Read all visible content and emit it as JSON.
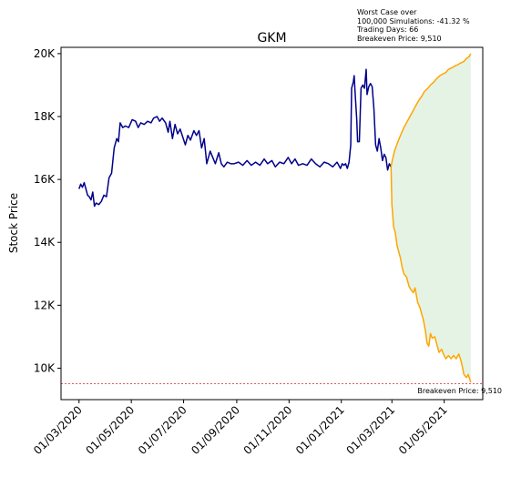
{
  "chart_data": {
    "type": "line",
    "title": "GKM",
    "ylabel": "Stock Price",
    "xlabel": "",
    "annotation_lines": [
      "Worst Case over",
      "100,000 Simulations: -41.32 %",
      "Trading Days: 66",
      "Breakeven Price: 9,510"
    ],
    "breakeven": {
      "value": 9510,
      "label": "Breakeven Price: 9,510",
      "color": "#d62728"
    },
    "x_tick_labels": [
      "01/03/2020",
      "01/05/2020",
      "01/07/2020",
      "01/09/2020",
      "01/11/2020",
      "01/01/2021",
      "01/03/2021",
      "01/05/2021"
    ],
    "x_tick_dates": [
      "2020-03-01",
      "2020-05-01",
      "2020-07-01",
      "2020-09-01",
      "2020-11-01",
      "2021-01-01",
      "2021-03-01",
      "2021-05-01"
    ],
    "xlim": [
      "2020-02-09",
      "2021-06-15"
    ],
    "y_ticks": [
      10000,
      12000,
      14000,
      16000,
      18000,
      20000
    ],
    "y_tick_labels": [
      "10K",
      "12K",
      "14K",
      "16K",
      "18K",
      "20K"
    ],
    "ylim": [
      9000,
      20200
    ],
    "grid": false,
    "series": [
      {
        "color": "#00008b",
        "points": [
          [
            "2020-03-01",
            15700
          ],
          [
            "2020-03-03",
            15850
          ],
          [
            "2020-03-05",
            15750
          ],
          [
            "2020-03-07",
            15900
          ],
          [
            "2020-03-09",
            15700
          ],
          [
            "2020-03-11",
            15500
          ],
          [
            "2020-03-13",
            15450
          ],
          [
            "2020-03-15",
            15350
          ],
          [
            "2020-03-17",
            15600
          ],
          [
            "2020-03-19",
            15150
          ],
          [
            "2020-03-21",
            15250
          ],
          [
            "2020-03-24",
            15200
          ],
          [
            "2020-03-27",
            15300
          ],
          [
            "2020-03-30",
            15500
          ],
          [
            "2020-04-02",
            15450
          ],
          [
            "2020-04-05",
            16050
          ],
          [
            "2020-04-08",
            16200
          ],
          [
            "2020-04-11",
            17000
          ],
          [
            "2020-04-14",
            17300
          ],
          [
            "2020-04-16",
            17200
          ],
          [
            "2020-04-18",
            17800
          ],
          [
            "2020-04-21",
            17650
          ],
          [
            "2020-04-24",
            17700
          ],
          [
            "2020-04-28",
            17650
          ],
          [
            "2020-05-02",
            17900
          ],
          [
            "2020-05-06",
            17850
          ],
          [
            "2020-05-09",
            17650
          ],
          [
            "2020-05-12",
            17800
          ],
          [
            "2020-05-16",
            17750
          ],
          [
            "2020-05-20",
            17850
          ],
          [
            "2020-05-24",
            17800
          ],
          [
            "2020-05-27",
            17950
          ],
          [
            "2020-05-31",
            18000
          ],
          [
            "2020-06-03",
            17850
          ],
          [
            "2020-06-06",
            17950
          ],
          [
            "2020-06-10",
            17800
          ],
          [
            "2020-06-13",
            17500
          ],
          [
            "2020-06-15",
            17850
          ],
          [
            "2020-06-18",
            17300
          ],
          [
            "2020-06-21",
            17750
          ],
          [
            "2020-06-24",
            17450
          ],
          [
            "2020-06-27",
            17600
          ],
          [
            "2020-06-30",
            17350
          ],
          [
            "2020-07-03",
            17100
          ],
          [
            "2020-07-06",
            17400
          ],
          [
            "2020-07-09",
            17250
          ],
          [
            "2020-07-13",
            17550
          ],
          [
            "2020-07-16",
            17400
          ],
          [
            "2020-07-19",
            17550
          ],
          [
            "2020-07-22",
            17000
          ],
          [
            "2020-07-25",
            17300
          ],
          [
            "2020-07-28",
            16500
          ],
          [
            "2020-08-01",
            16900
          ],
          [
            "2020-08-04",
            16700
          ],
          [
            "2020-08-07",
            16500
          ],
          [
            "2020-08-11",
            16850
          ],
          [
            "2020-08-14",
            16500
          ],
          [
            "2020-08-17",
            16400
          ],
          [
            "2020-08-21",
            16550
          ],
          [
            "2020-08-25",
            16500
          ],
          [
            "2020-08-29",
            16500
          ],
          [
            "2020-09-03",
            16550
          ],
          [
            "2020-09-08",
            16450
          ],
          [
            "2020-09-13",
            16600
          ],
          [
            "2020-09-18",
            16450
          ],
          [
            "2020-09-23",
            16550
          ],
          [
            "2020-09-28",
            16450
          ],
          [
            "2020-10-03",
            16650
          ],
          [
            "2020-10-07",
            16500
          ],
          [
            "2020-10-12",
            16600
          ],
          [
            "2020-10-16",
            16400
          ],
          [
            "2020-10-21",
            16550
          ],
          [
            "2020-10-26",
            16500
          ],
          [
            "2020-10-31",
            16700
          ],
          [
            "2020-11-04",
            16500
          ],
          [
            "2020-11-08",
            16650
          ],
          [
            "2020-11-12",
            16450
          ],
          [
            "2020-11-17",
            16500
          ],
          [
            "2020-11-22",
            16450
          ],
          [
            "2020-11-27",
            16650
          ],
          [
            "2020-12-02",
            16500
          ],
          [
            "2020-12-07",
            16400
          ],
          [
            "2020-12-12",
            16550
          ],
          [
            "2020-12-17",
            16500
          ],
          [
            "2020-12-22",
            16400
          ],
          [
            "2020-12-27",
            16550
          ],
          [
            "2020-12-31",
            16350
          ],
          [
            "2021-01-02",
            16500
          ],
          [
            "2021-01-04",
            16450
          ],
          [
            "2021-01-06",
            16500
          ],
          [
            "2021-01-08",
            16350
          ],
          [
            "2021-01-10",
            16550
          ],
          [
            "2021-01-12",
            17100
          ],
          [
            "2021-01-13",
            18900
          ],
          [
            "2021-01-15",
            19100
          ],
          [
            "2021-01-16",
            19300
          ],
          [
            "2021-01-17",
            18800
          ],
          [
            "2021-01-19",
            17900
          ],
          [
            "2021-01-20",
            17200
          ],
          [
            "2021-01-22",
            17200
          ],
          [
            "2021-01-24",
            18900
          ],
          [
            "2021-01-26",
            19000
          ],
          [
            "2021-01-28",
            18900
          ],
          [
            "2021-01-30",
            19500
          ],
          [
            "2021-01-31",
            18700
          ],
          [
            "2021-02-02",
            18950
          ],
          [
            "2021-02-04",
            19050
          ],
          [
            "2021-02-06",
            18950
          ],
          [
            "2021-02-08",
            18250
          ],
          [
            "2021-02-10",
            17100
          ],
          [
            "2021-02-12",
            16900
          ],
          [
            "2021-02-14",
            17300
          ],
          [
            "2021-02-16",
            17000
          ],
          [
            "2021-02-18",
            16600
          ],
          [
            "2021-02-20",
            16800
          ],
          [
            "2021-02-22",
            16700
          ],
          [
            "2021-02-24",
            16300
          ],
          [
            "2021-02-26",
            16500
          ],
          [
            "2021-02-28",
            16400
          ]
        ]
      },
      {
        "color": "#ffa500",
        "points": [
          [
            "2021-02-28",
            16400
          ],
          [
            "2021-03-01",
            16550
          ],
          [
            "2021-03-04",
            16900
          ],
          [
            "2021-03-08",
            17200
          ],
          [
            "2021-03-11",
            17400
          ],
          [
            "2021-03-15",
            17650
          ],
          [
            "2021-03-18",
            17800
          ],
          [
            "2021-03-22",
            18000
          ],
          [
            "2021-03-25",
            18150
          ],
          [
            "2021-03-29",
            18350
          ],
          [
            "2021-04-01",
            18500
          ],
          [
            "2021-04-05",
            18650
          ],
          [
            "2021-04-08",
            18800
          ],
          [
            "2021-04-12",
            18900
          ],
          [
            "2021-04-15",
            19000
          ],
          [
            "2021-04-19",
            19100
          ],
          [
            "2021-04-22",
            19200
          ],
          [
            "2021-04-26",
            19300
          ],
          [
            "2021-04-29",
            19350
          ],
          [
            "2021-05-03",
            19400
          ],
          [
            "2021-05-06",
            19500
          ],
          [
            "2021-05-10",
            19550
          ],
          [
            "2021-05-13",
            19600
          ],
          [
            "2021-05-17",
            19650
          ],
          [
            "2021-05-20",
            19700
          ],
          [
            "2021-05-24",
            19750
          ],
          [
            "2021-05-27",
            19850
          ],
          [
            "2021-05-30",
            19900
          ],
          [
            "2021-06-01",
            20000
          ]
        ]
      },
      {
        "color": "#ffa500",
        "points": [
          [
            "2021-02-28",
            16400
          ],
          [
            "2021-03-01",
            15200
          ],
          [
            "2021-03-03",
            14500
          ],
          [
            "2021-03-05",
            14300
          ],
          [
            "2021-03-07",
            13900
          ],
          [
            "2021-03-09",
            13700
          ],
          [
            "2021-03-11",
            13500
          ],
          [
            "2021-03-13",
            13200
          ],
          [
            "2021-03-15",
            13000
          ],
          [
            "2021-03-18",
            12900
          ],
          [
            "2021-03-21",
            12600
          ],
          [
            "2021-03-23",
            12500
          ],
          [
            "2021-03-26",
            12400
          ],
          [
            "2021-03-28",
            12550
          ],
          [
            "2021-03-31",
            12100
          ],
          [
            "2021-04-03",
            11900
          ],
          [
            "2021-04-05",
            11700
          ],
          [
            "2021-04-07",
            11500
          ],
          [
            "2021-04-09",
            11200
          ],
          [
            "2021-04-11",
            10800
          ],
          [
            "2021-04-13",
            10700
          ],
          [
            "2021-04-15",
            11100
          ],
          [
            "2021-04-17",
            10950
          ],
          [
            "2021-04-20",
            11000
          ],
          [
            "2021-04-22",
            10800
          ],
          [
            "2021-04-25",
            10500
          ],
          [
            "2021-04-28",
            10600
          ],
          [
            "2021-05-01",
            10400
          ],
          [
            "2021-05-03",
            10300
          ],
          [
            "2021-05-06",
            10400
          ],
          [
            "2021-05-09",
            10300
          ],
          [
            "2021-05-12",
            10400
          ],
          [
            "2021-05-15",
            10300
          ],
          [
            "2021-05-18",
            10450
          ],
          [
            "2021-05-21",
            10200
          ],
          [
            "2021-05-24",
            9800
          ],
          [
            "2021-05-27",
            9700
          ],
          [
            "2021-05-29",
            9800
          ],
          [
            "2021-06-01",
            9550
          ]
        ]
      }
    ],
    "band": {
      "x_start": "2021-02-28",
      "x_end": "2021-06-01",
      "color": "#2ca02c",
      "opacity": 0.12
    }
  }
}
